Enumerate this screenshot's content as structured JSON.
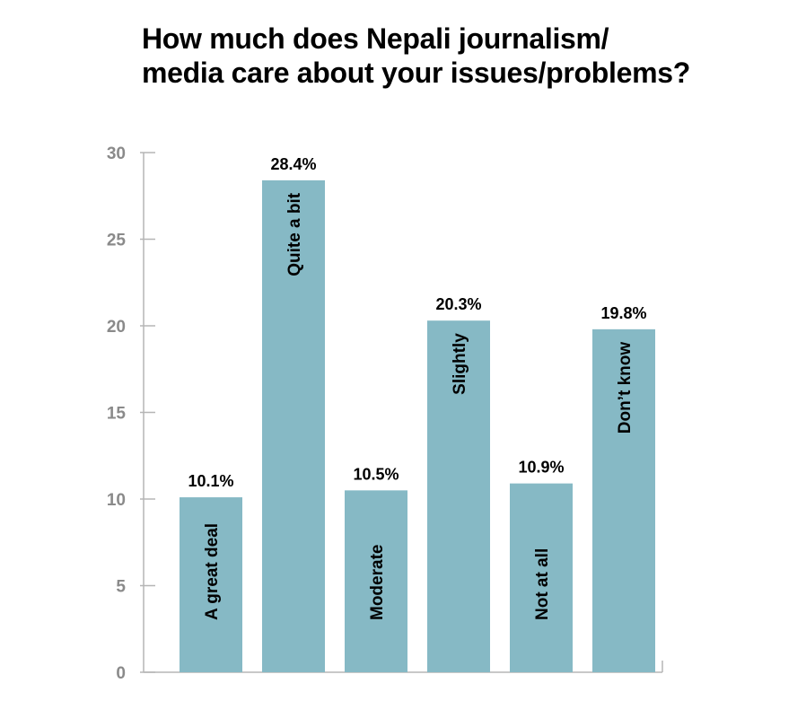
{
  "title_lines": [
    "How much does Nepali journalism/",
    "media care about your issues/problems?"
  ],
  "colors": {
    "bar": "#86b9c5",
    "axis": "#b5b5b5",
    "tick_text": "#8a8a8a",
    "text": "#000000"
  },
  "chart_data": {
    "type": "bar",
    "title": "How much does Nepali journalism/ media care about your issues/problems?",
    "categories": [
      "A great deal",
      "Quite a bit",
      "Moderate",
      "Slightly",
      "Not at all",
      "Don’t know"
    ],
    "values": [
      10.1,
      28.4,
      10.5,
      20.3,
      10.9,
      19.8
    ],
    "data_labels": [
      "10.1%",
      "28.4%",
      "10.5%",
      "20.3%",
      "10.9%",
      "19.8%"
    ],
    "yticks": [
      0,
      5,
      10,
      15,
      20,
      25,
      30
    ],
    "ylim": [
      0,
      30
    ],
    "xlabel": "",
    "ylabel": "",
    "grid": false,
    "legend": "none"
  }
}
